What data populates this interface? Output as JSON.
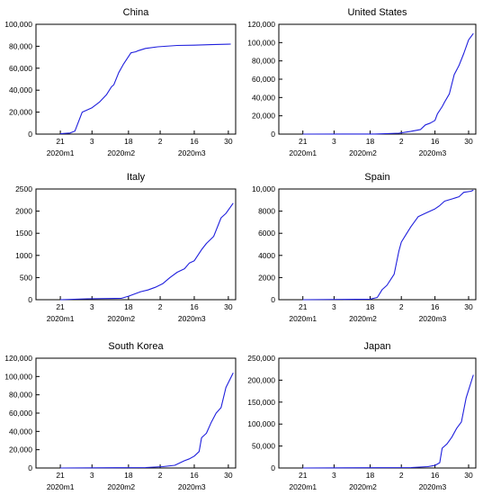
{
  "style": {
    "line_color": "#1f1fdd",
    "axis_color": "#000000"
  },
  "chart_data": [
    {
      "type": "line",
      "title": "China",
      "xlim": [
        "2020-01-11",
        "2020-04-02"
      ],
      "ylim": [
        0,
        100000
      ],
      "y_ticks": [
        0,
        20000,
        40000,
        60000,
        80000,
        100000
      ],
      "y_tick_labels": [
        "0",
        "20,000",
        "40,000",
        "60,000",
        "80,000",
        "100,000"
      ],
      "x_ticks": [
        "2020-01-21",
        "2020-02-03",
        "2020-02-18",
        "2020-03-02",
        "2020-03-16",
        "2020-03-30"
      ],
      "x_tick_labels": [
        "21",
        "3",
        "18",
        "2",
        "16",
        "30"
      ],
      "x_period_labels": [
        "2020m1",
        "2020m2",
        "2020m3"
      ],
      "x_period_dates": [
        "2020-01-21",
        "2020-02-15",
        "2020-03-15"
      ],
      "x": [
        "2020-01-21",
        "2020-01-25",
        "2020-01-27",
        "2020-01-30",
        "2020-02-03",
        "2020-02-06",
        "2020-02-09",
        "2020-02-11",
        "2020-02-12",
        "2020-02-14",
        "2020-02-16",
        "2020-02-19",
        "2020-02-21",
        "2020-02-22",
        "2020-02-25",
        "2020-03-01",
        "2020-03-09",
        "2020-03-16",
        "2020-03-23",
        "2020-03-31"
      ],
      "y": [
        300,
        1000,
        2800,
        20000,
        24000,
        29000,
        36000,
        43000,
        45000,
        56000,
        64000,
        74000,
        75000,
        76000,
        78000,
        79500,
        80700,
        81000,
        81500,
        82000
      ]
    },
    {
      "type": "line",
      "title": "United States",
      "xlim": [
        "2020-01-11",
        "2020-04-02"
      ],
      "ylim": [
        0,
        120000
      ],
      "y_ticks": [
        0,
        20000,
        40000,
        60000,
        80000,
        100000,
        120000
      ],
      "y_tick_labels": [
        "0",
        "20,000",
        "40,000",
        "60,000",
        "80,000",
        "100,000",
        "120,000"
      ],
      "x_ticks": [
        "2020-01-21",
        "2020-02-03",
        "2020-02-18",
        "2020-03-02",
        "2020-03-16",
        "2020-03-30"
      ],
      "x_tick_labels": [
        "21",
        "3",
        "18",
        "2",
        "16",
        "30"
      ],
      "x_period_labels": [
        "2020m1",
        "2020m2",
        "2020m3"
      ],
      "x_period_dates": [
        "2020-01-21",
        "2020-02-15",
        "2020-03-15"
      ],
      "x": [
        "2020-01-21",
        "2020-02-20",
        "2020-03-01",
        "2020-03-06",
        "2020-03-10",
        "2020-03-12",
        "2020-03-14",
        "2020-03-16",
        "2020-03-17",
        "2020-03-19",
        "2020-03-20",
        "2020-03-22",
        "2020-03-24",
        "2020-03-26",
        "2020-03-28",
        "2020-03-30",
        "2020-04-01"
      ],
      "y": [
        0,
        100,
        1000,
        3000,
        5000,
        10000,
        12000,
        15000,
        22000,
        30000,
        35000,
        44000,
        65000,
        75000,
        88000,
        103000,
        110000
      ]
    },
    {
      "type": "line",
      "title": "Italy",
      "xlim": [
        "2020-01-11",
        "2020-04-02"
      ],
      "ylim": [
        0,
        2500
      ],
      "y_ticks": [
        0,
        500,
        1000,
        1500,
        2000,
        2500
      ],
      "y_tick_labels": [
        "0",
        "500",
        "1000",
        "1500",
        "2000",
        "2500"
      ],
      "x_ticks": [
        "2020-01-21",
        "2020-02-03",
        "2020-02-18",
        "2020-03-02",
        "2020-03-16",
        "2020-03-30"
      ],
      "x_tick_labels": [
        "21",
        "3",
        "18",
        "2",
        "16",
        "30"
      ],
      "x_period_labels": [
        "2020m1",
        "2020m2",
        "2020m3"
      ],
      "x_period_dates": [
        "2020-01-21",
        "2020-02-15",
        "2020-03-15"
      ],
      "x": [
        "2020-01-21",
        "2020-02-01",
        "2020-02-15",
        "2020-02-18",
        "2020-02-20",
        "2020-02-23",
        "2020-02-26",
        "2020-02-29",
        "2020-03-03",
        "2020-03-06",
        "2020-03-09",
        "2020-03-12",
        "2020-03-14",
        "2020-03-16",
        "2020-03-19",
        "2020-03-21",
        "2020-03-24",
        "2020-03-27",
        "2020-03-29",
        "2020-04-01"
      ],
      "y": [
        0,
        20,
        30,
        80,
        120,
        180,
        220,
        280,
        360,
        500,
        620,
        700,
        830,
        880,
        1130,
        1270,
        1430,
        1850,
        1950,
        2180
      ]
    },
    {
      "type": "line",
      "title": "Spain",
      "xlim": [
        "2020-01-11",
        "2020-04-02"
      ],
      "ylim": [
        0,
        10000
      ],
      "y_ticks": [
        0,
        2000,
        4000,
        6000,
        8000,
        10000
      ],
      "y_tick_labels": [
        "0",
        "2000",
        "4000",
        "6000",
        "8000",
        "10,000"
      ],
      "x_ticks": [
        "2020-01-21",
        "2020-02-03",
        "2020-02-18",
        "2020-03-02",
        "2020-03-16",
        "2020-03-30"
      ],
      "x_tick_labels": [
        "21",
        "3",
        "18",
        "2",
        "16",
        "30"
      ],
      "x_period_labels": [
        "2020m1",
        "2020m2",
        "2020m3"
      ],
      "x_period_dates": [
        "2020-01-21",
        "2020-02-15",
        "2020-03-15"
      ],
      "x": [
        "2020-01-21",
        "2020-02-18",
        "2020-02-21",
        "2020-02-23",
        "2020-02-25",
        "2020-02-28",
        "2020-03-01",
        "2020-03-02",
        "2020-03-04",
        "2020-03-06",
        "2020-03-09",
        "2020-03-11",
        "2020-03-13",
        "2020-03-16",
        "2020-03-18",
        "2020-03-20",
        "2020-03-23",
        "2020-03-26",
        "2020-03-28",
        "2020-03-31",
        "2020-04-01"
      ],
      "y": [
        0,
        50,
        200,
        900,
        1300,
        2300,
        4400,
        5200,
        5900,
        6600,
        7500,
        7700,
        7900,
        8200,
        8500,
        8900,
        9100,
        9300,
        9700,
        9800,
        9900
      ]
    },
    {
      "type": "line",
      "title": "South Korea",
      "xlim": [
        "2020-01-11",
        "2020-04-02"
      ],
      "ylim": [
        0,
        120000
      ],
      "y_ticks": [
        0,
        20000,
        40000,
        60000,
        80000,
        100000,
        120000
      ],
      "y_tick_labels": [
        "0",
        "20,000",
        "40,000",
        "60,000",
        "80,000",
        "100,000",
        "120,000"
      ],
      "x_ticks": [
        "2020-01-21",
        "2020-02-03",
        "2020-02-18",
        "2020-03-02",
        "2020-03-16",
        "2020-03-30"
      ],
      "x_tick_labels": [
        "21",
        "3",
        "18",
        "2",
        "16",
        "30"
      ],
      "x_period_labels": [
        "2020m1",
        "2020m2",
        "2020m3"
      ],
      "x_period_dates": [
        "2020-01-21",
        "2020-02-15",
        "2020-03-15"
      ],
      "x": [
        "2020-01-21",
        "2020-02-25",
        "2020-03-03",
        "2020-03-08",
        "2020-03-12",
        "2020-03-14",
        "2020-03-16",
        "2020-03-18",
        "2020-03-19",
        "2020-03-21",
        "2020-03-23",
        "2020-03-25",
        "2020-03-27",
        "2020-03-29",
        "2020-04-01"
      ],
      "y": [
        0,
        500,
        1500,
        3000,
        8000,
        10000,
        13000,
        18000,
        33000,
        38000,
        50000,
        60000,
        66000,
        88000,
        104000
      ]
    },
    {
      "type": "line",
      "title": "Japan",
      "xlim": [
        "2020-01-11",
        "2020-04-02"
      ],
      "ylim": [
        0,
        250000
      ],
      "y_ticks": [
        0,
        50000,
        100000,
        150000,
        200000,
        250000
      ],
      "y_tick_labels": [
        "0",
        "50,000",
        "100,000",
        "150,000",
        "200,000",
        "250,000"
      ],
      "x_ticks": [
        "2020-01-21",
        "2020-02-03",
        "2020-02-18",
        "2020-03-02",
        "2020-03-16",
        "2020-03-30"
      ],
      "x_tick_labels": [
        "21",
        "3",
        "18",
        "2",
        "16",
        "30"
      ],
      "x_period_labels": [
        "2020m1",
        "2020m2",
        "2020m3"
      ],
      "x_period_dates": [
        "2020-01-21",
        "2020-02-15",
        "2020-03-15"
      ],
      "x": [
        "2020-01-21",
        "2020-03-06",
        "2020-03-13",
        "2020-03-16",
        "2020-03-18",
        "2020-03-19",
        "2020-03-21",
        "2020-03-23",
        "2020-03-25",
        "2020-03-27",
        "2020-03-29",
        "2020-04-01"
      ],
      "y": [
        0,
        1000,
        3000,
        6000,
        12000,
        45000,
        55000,
        70000,
        90000,
        105000,
        160000,
        212000
      ]
    }
  ]
}
